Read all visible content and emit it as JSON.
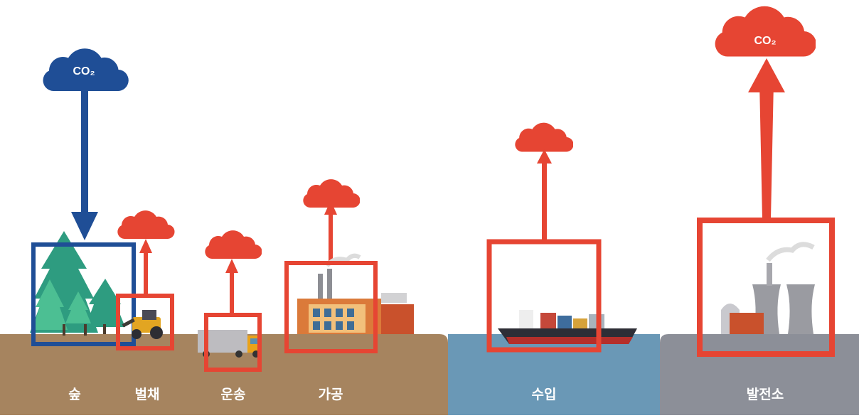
{
  "stages": [
    {
      "id": "forest",
      "label": "숲",
      "flow": "absorption",
      "co2_label": "CO₂"
    },
    {
      "id": "harvest",
      "label": "벌채",
      "flow": "emission"
    },
    {
      "id": "transport",
      "label": "운송",
      "flow": "emission"
    },
    {
      "id": "processing",
      "label": "가공",
      "flow": "emission"
    },
    {
      "id": "import",
      "label": "수입",
      "flow": "emission"
    },
    {
      "id": "power_plant",
      "label": "발전소",
      "flow": "emission",
      "co2_label": "CO₂"
    }
  ],
  "colors": {
    "absorption": "#1f4e96",
    "emission": "#e64533",
    "land": "#a6845f",
    "sea": "#6a98b6",
    "plant_ground": "#8c8f98",
    "label_text": "#ffffff"
  }
}
